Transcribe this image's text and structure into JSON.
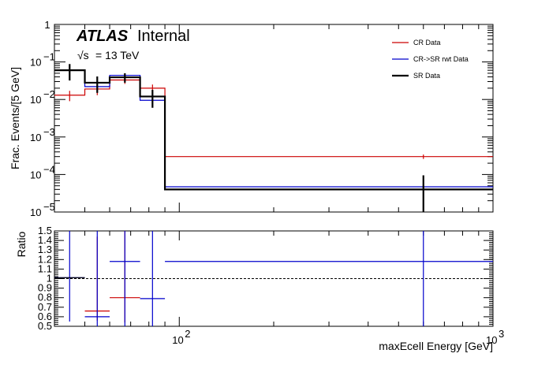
{
  "chart_data": [
    {
      "type": "line",
      "panel": "main",
      "ylabel": "Frac. Events/[5 GeV]",
      "yscale": "log",
      "ylim": [
        1e-05,
        1
      ],
      "y_ticks": [
        {
          "value": 1e-05,
          "base": "10",
          "exp": "−5"
        },
        {
          "value": 0.0001,
          "base": "10",
          "exp": "−4"
        },
        {
          "value": 0.001,
          "base": "10",
          "exp": "−3"
        },
        {
          "value": 0.01,
          "base": "10",
          "exp": "−2"
        },
        {
          "value": 0.1,
          "base": "10",
          "exp": "−1"
        },
        {
          "value": 1,
          "base": "1",
          "exp": ""
        }
      ],
      "xscale": "log",
      "xlim": [
        40,
        1000
      ],
      "annotations": {
        "atlas": "ATLAS",
        "internal": "Internal",
        "energy_sqrt": "√s",
        "energy_value": "= 13 TeV"
      },
      "legend_position": "top-right",
      "series": [
        {
          "name": "CR Data",
          "color": "#cc0000",
          "bins": [
            {
              "lo": 40,
              "hi": 50,
              "y": 0.013,
              "err": 0.004
            },
            {
              "lo": 50,
              "hi": 60,
              "y": 0.019,
              "err": 0.006
            },
            {
              "lo": 60,
              "hi": 75,
              "y": 0.033,
              "err": 0.007
            },
            {
              "lo": 75,
              "hi": 90,
              "y": 0.02,
              "err": 0.005
            },
            {
              "lo": 90,
              "hi": 1000,
              "y": 0.0003,
              "err": 4e-05
            }
          ]
        },
        {
          "name": "CR->SR rwt Data",
          "color": "#0000cc",
          "bins": [
            {
              "lo": 40,
              "hi": 50,
              "y": 0.06,
              "err": 0.008
            },
            {
              "lo": 50,
              "hi": 60,
              "y": 0.022,
              "err": 0.005
            },
            {
              "lo": 60,
              "hi": 75,
              "y": 0.044,
              "err": 0.006
            },
            {
              "lo": 75,
              "hi": 90,
              "y": 0.0095,
              "err": 0.0025
            },
            {
              "lo": 90,
              "hi": 1000,
              "y": 4.7e-05,
              "err": 1e-05
            }
          ]
        },
        {
          "name": "SR Data",
          "color": "#000000",
          "bins": [
            {
              "lo": 40,
              "hi": 50,
              "y": 0.06,
              "err": 0.028
            },
            {
              "lo": 50,
              "hi": 60,
              "y": 0.028,
              "err": 0.013
            },
            {
              "lo": 60,
              "hi": 75,
              "y": 0.039,
              "err": 0.011
            },
            {
              "lo": 75,
              "hi": 90,
              "y": 0.012,
              "err": 0.006
            },
            {
              "lo": 90,
              "hi": 1000,
              "y": 4e-05,
              "err": 5.5e-05
            }
          ]
        }
      ]
    },
    {
      "type": "line",
      "panel": "ratio",
      "ylabel": "Ratio",
      "ylim": [
        0.5,
        1.5
      ],
      "y_ticks": [
        "0.5",
        "0.6",
        "0.7",
        "0.8",
        "0.9",
        "1",
        "1.1",
        "1.2",
        "1.3",
        "1.4",
        "1.5"
      ],
      "xlabel": "maxEcell Energy [GeV]",
      "xscale": "log",
      "xlim": [
        40,
        1000
      ],
      "x_ticks": [
        {
          "value": 100,
          "base": "10",
          "exp": "2"
        },
        {
          "value": 1000,
          "base": "10",
          "exp": "3"
        }
      ],
      "reference_line": 1.0,
      "series": [
        {
          "color": "#cc0000",
          "bins": [
            {
              "lo": 50,
              "hi": 60,
              "y": 0.66,
              "err_lo": 0.1,
              "err_hi": 0.78
            },
            {
              "lo": 60,
              "hi": 75,
              "y": 0.8,
              "err_lo": 0.26,
              "err_hi": 0.7
            }
          ]
        },
        {
          "color": "#0000cc",
          "bins": [
            {
              "lo": 40,
              "hi": 50,
              "y": 1.01,
              "err_lo": 0.46,
              "err_hi": 0.49
            },
            {
              "lo": 50,
              "hi": 60,
              "y": 0.6,
              "err_lo": 0.1,
              "err_hi": 0.9
            },
            {
              "lo": 60,
              "hi": 75,
              "y": 1.18,
              "err_lo": 0.68,
              "err_hi": 0.32
            },
            {
              "lo": 75,
              "hi": 90,
              "y": 0.79,
              "err_lo": 0.29,
              "err_hi": 0.71
            },
            {
              "lo": 90,
              "hi": 1000,
              "y": 1.18,
              "err_lo": 0.68,
              "err_hi": 0.32
            }
          ]
        }
      ]
    }
  ]
}
